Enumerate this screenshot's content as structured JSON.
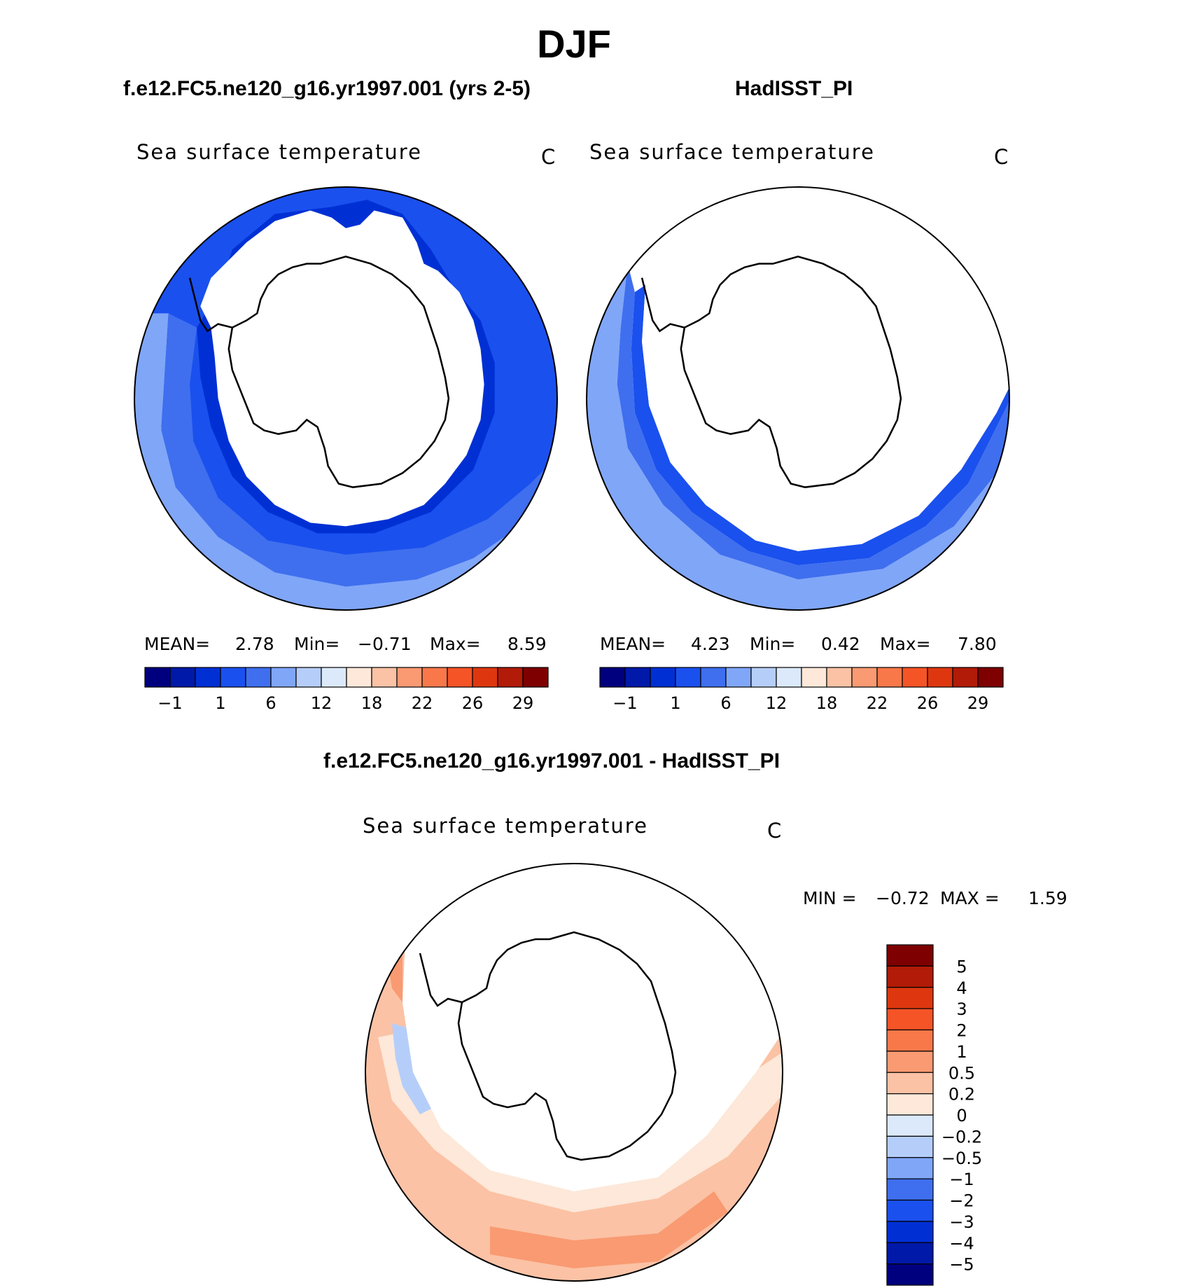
{
  "figure": {
    "title": "DJF"
  },
  "panels": {
    "left": {
      "case": "f.e12.FC5.ne120_g16.yr1997.001 (yrs 2-5)",
      "variable": "Sea surface temperature",
      "units": "C",
      "mean_label": "MEAN=",
      "mean_value": "2.78",
      "min_label": "Min=",
      "min_value": "−0.71",
      "max_label": "Max=",
      "max_value": "8.59"
    },
    "right": {
      "case": "HadISST_PI",
      "variable": "Sea surface temperature",
      "units": "C",
      "mean_label": "MEAN=",
      "mean_value": "4.23",
      "min_label": "Min=",
      "min_value": "0.42",
      "max_label": "Max=",
      "max_value": "7.80"
    },
    "diff": {
      "case": "f.e12.FC5.ne120_g16.yr1997.001 - HadISST_PI",
      "variable": "Sea surface temperature",
      "units": "C",
      "min_label": "MIN =",
      "min_value": "−0.72",
      "max_label": "MAX =",
      "max_value": "1.59"
    }
  },
  "colorbars": {
    "abs": {
      "colors": [
        "#00007f",
        "#0019a8",
        "#0030d4",
        "#1a50ee",
        "#3f6fee",
        "#80a6f8",
        "#b5cef9",
        "#dbe9fb",
        "#fde8d9",
        "#fbc2a5",
        "#f99a72",
        "#f8784a",
        "#f55426",
        "#de370f",
        "#b11b08",
        "#7e0000"
      ],
      "tick_labels": [
        "−1",
        "1",
        "6",
        "12",
        "18",
        "22",
        "26",
        "29"
      ]
    },
    "diff": {
      "colors": [
        "#7e0000",
        "#b11b08",
        "#de370f",
        "#f55426",
        "#f8784a",
        "#f99a72",
        "#fbc2a5",
        "#fde8d9",
        "#dbe9fb",
        "#b5cef9",
        "#80a6f8",
        "#3f6fee",
        "#1a50ee",
        "#0030d4",
        "#0019a8",
        "#00007f"
      ],
      "tick_labels": [
        "5",
        "4",
        "3",
        "2",
        "1",
        "0.5",
        "0.2",
        "0",
        "−0.2",
        "−0.5",
        "−1",
        "−2",
        "−3",
        "−4",
        "−5"
      ]
    }
  },
  "chart_data": [
    {
      "type": "heatmap",
      "projection": "polar stereographic (South Pole)",
      "title": "f.e12.FC5.ne120_g16.yr1997.001 (yrs 2-5)",
      "variable": "Sea surface temperature",
      "units": "C",
      "mean": 2.78,
      "min": -0.71,
      "max": 8.59,
      "contour_ticks": [
        -1,
        1,
        6,
        12,
        18,
        22,
        26,
        29
      ]
    },
    {
      "type": "heatmap",
      "projection": "polar stereographic (South Pole)",
      "title": "HadISST_PI",
      "variable": "Sea surface temperature",
      "units": "C",
      "mean": 4.23,
      "min": 0.42,
      "max": 7.8,
      "contour_ticks": [
        -1,
        1,
        6,
        12,
        18,
        22,
        26,
        29
      ]
    },
    {
      "type": "heatmap",
      "projection": "polar stereographic (South Pole)",
      "title": "f.e12.FC5.ne120_g16.yr1997.001 - HadISST_PI",
      "variable": "Sea surface temperature",
      "units": "C",
      "min": -0.72,
      "max": 1.59,
      "contour_ticks": [
        5,
        4,
        3,
        2,
        1,
        0.5,
        0.2,
        0,
        -0.2,
        -0.5,
        -1,
        -2,
        -3,
        -4,
        -5
      ]
    }
  ]
}
